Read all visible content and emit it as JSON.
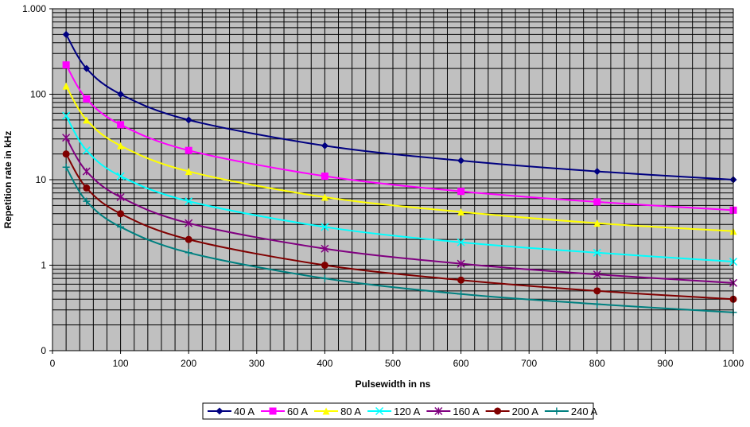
{
  "chart_data": {
    "type": "line",
    "title": "",
    "xlabel": "Pulsewidth in ns",
    "ylabel": "Repetition rate in kHz",
    "x_scale": "linear",
    "y_scale": "log",
    "xlim": [
      0,
      1000
    ],
    "ylim": [
      0.1,
      1000
    ],
    "x_ticks": [
      0,
      100,
      200,
      300,
      400,
      500,
      600,
      700,
      800,
      900,
      1000
    ],
    "x_tick_labels": [
      "0",
      "100",
      "200",
      "300",
      "400",
      "500",
      "600",
      "700",
      "800",
      "900",
      "1000"
    ],
    "y_ticks": [
      0.1,
      1,
      10,
      100,
      1000
    ],
    "y_tick_labels": [
      "0",
      "1",
      "10",
      "100",
      "1.000"
    ],
    "grid": true,
    "plot_background": "#c0c0c0",
    "legend_position": "bottom",
    "x": [
      20,
      50,
      100,
      200,
      400,
      600,
      800,
      1000
    ],
    "series": [
      {
        "name": "40 A",
        "color": "#000080",
        "marker": "diamond",
        "values": [
          500,
          200,
          100,
          50,
          25,
          16.7,
          12.5,
          10
        ]
      },
      {
        "name": "60 A",
        "color": "#ff00ff",
        "marker": "square",
        "values": [
          220,
          88,
          44,
          22,
          11,
          7.3,
          5.5,
          4.4
        ]
      },
      {
        "name": "80 A",
        "color": "#ffff00",
        "marker": "triangle",
        "values": [
          125,
          50,
          25,
          12.5,
          6.25,
          4.2,
          3.1,
          2.5
        ]
      },
      {
        "name": "120 A",
        "color": "#00ffff",
        "marker": "x",
        "values": [
          56,
          22,
          11,
          5.6,
          2.8,
          1.85,
          1.4,
          1.1
        ]
      },
      {
        "name": "160 A",
        "color": "#800080",
        "marker": "asterisk",
        "values": [
          31,
          12.5,
          6.25,
          3.1,
          1.56,
          1.04,
          0.78,
          0.62
        ]
      },
      {
        "name": "200 A",
        "color": "#800000",
        "marker": "circle",
        "values": [
          20,
          8,
          4,
          2,
          1,
          0.67,
          0.5,
          0.4
        ]
      },
      {
        "name": "240 A",
        "color": "#008080",
        "marker": "plus",
        "values": [
          14,
          5.6,
          2.8,
          1.4,
          0.7,
          0.46,
          0.35,
          0.28
        ]
      }
    ]
  }
}
